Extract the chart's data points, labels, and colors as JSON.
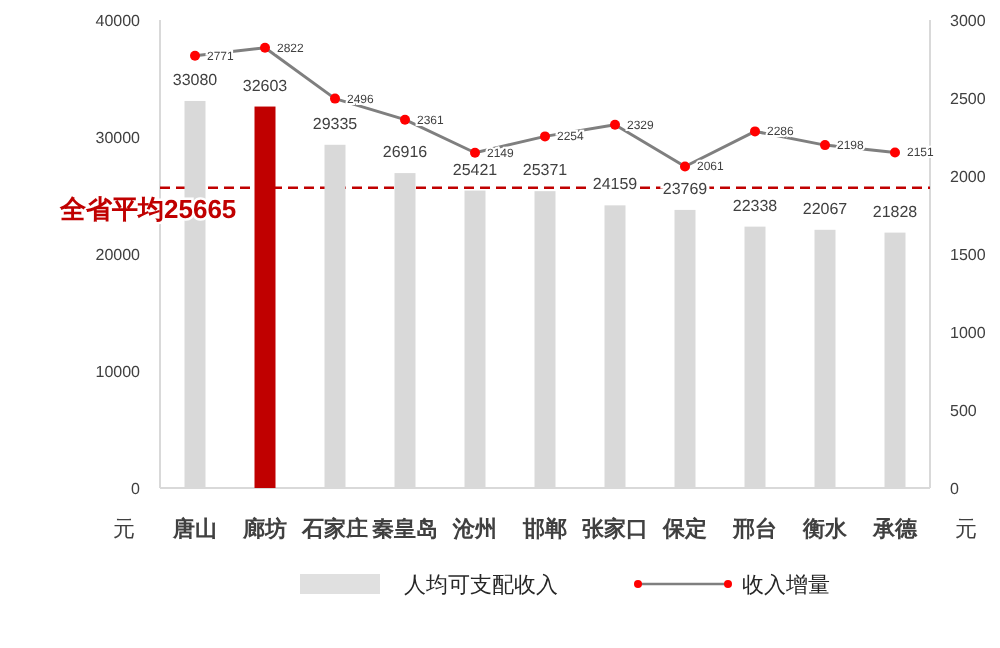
{
  "chart_data": {
    "type": "bar",
    "categories": [
      "唐山",
      "廊坊",
      "石家庄",
      "秦皇岛",
      "沧州",
      "邯郸",
      "张家口",
      "保定",
      "邢台",
      "衡水",
      "承德"
    ],
    "series": [
      {
        "name": "人均可支配收入",
        "colors": [
          "#d9d9d9",
          "#c00000",
          "#d9d9d9",
          "#d9d9d9",
          "#d9d9d9",
          "#d9d9d9",
          "#d9d9d9",
          "#d9d9d9",
          "#d9d9d9",
          "#d9d9d9",
          "#d9d9d9"
        ],
        "values": [
          33080,
          32603,
          29335,
          26916,
          25421,
          25371,
          24159,
          23769,
          22338,
          22067,
          21828
        ]
      },
      {
        "name": "收入增量",
        "type": "line",
        "axis": "y2",
        "color": "#7f7f7f",
        "colors": [
          "#ff0000",
          "#ff0000",
          "#ff0000",
          "#ff0000",
          "#ff0000",
          "#ff0000",
          "#ff0000",
          "#ff0000",
          "#ff0000",
          "#ff0000",
          "#ff0000"
        ],
        "marker": "circle",
        "values": [
          2771,
          2822,
          2496,
          2361,
          2149,
          2254,
          2329,
          2061,
          2286,
          2198,
          2151
        ]
      }
    ],
    "ylabel": "元",
    "y2label": "元",
    "ylim": [
      0,
      40000
    ],
    "yticks": [
      0,
      10000,
      20000,
      30000,
      40000
    ],
    "y2lim": [
      0,
      3000
    ],
    "y2ticks": [
      0,
      500,
      1000,
      1500,
      2000,
      2500,
      3000
    ],
    "ref_lines": [
      {
        "axis": "y",
        "value": 25665,
        "label": "全省平均25665",
        "color": "#c00000",
        "line_style": "dashed"
      }
    ],
    "data_labels": true,
    "grid": false,
    "legend": "bottom"
  }
}
